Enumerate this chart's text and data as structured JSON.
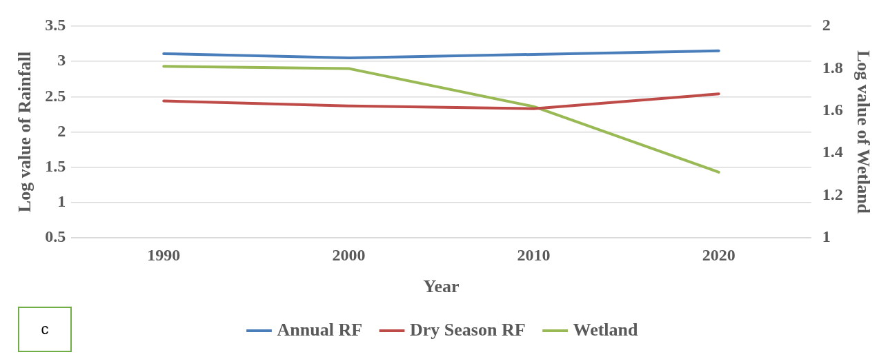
{
  "chart_data": {
    "type": "line",
    "xlabel": "Year",
    "ylabel": "Log value of Rainfall",
    "y2label": "Log value of Wetland",
    "categories": [
      "1990",
      "2000",
      "2010",
      "2020"
    ],
    "series": [
      {
        "name": "Annual RF",
        "color": "#4a7ebb",
        "values": [
          3.11,
          3.05,
          3.1,
          3.15
        ]
      },
      {
        "name": "Dry Season RF",
        "color": "#be4b48",
        "values": [
          2.44,
          2.37,
          2.33,
          2.54
        ]
      },
      {
        "name": "Wetland",
        "color": "#98b954",
        "values": [
          1.81,
          1.8,
          1.62,
          1.31
        ],
        "axis": "y2"
      }
    ],
    "ylim": [
      0.5,
      3.5
    ],
    "yticks": [
      0.5,
      1,
      1.5,
      2,
      2.5,
      3,
      3.5
    ],
    "y2lim": [
      1,
      2
    ],
    "y2ticks": [
      1,
      1.2,
      1.4,
      1.6,
      1.8,
      2
    ],
    "grid": "y",
    "legend": "bottom",
    "marker": "none",
    "line_style": "solid",
    "annotations": [
      "c"
    ]
  }
}
